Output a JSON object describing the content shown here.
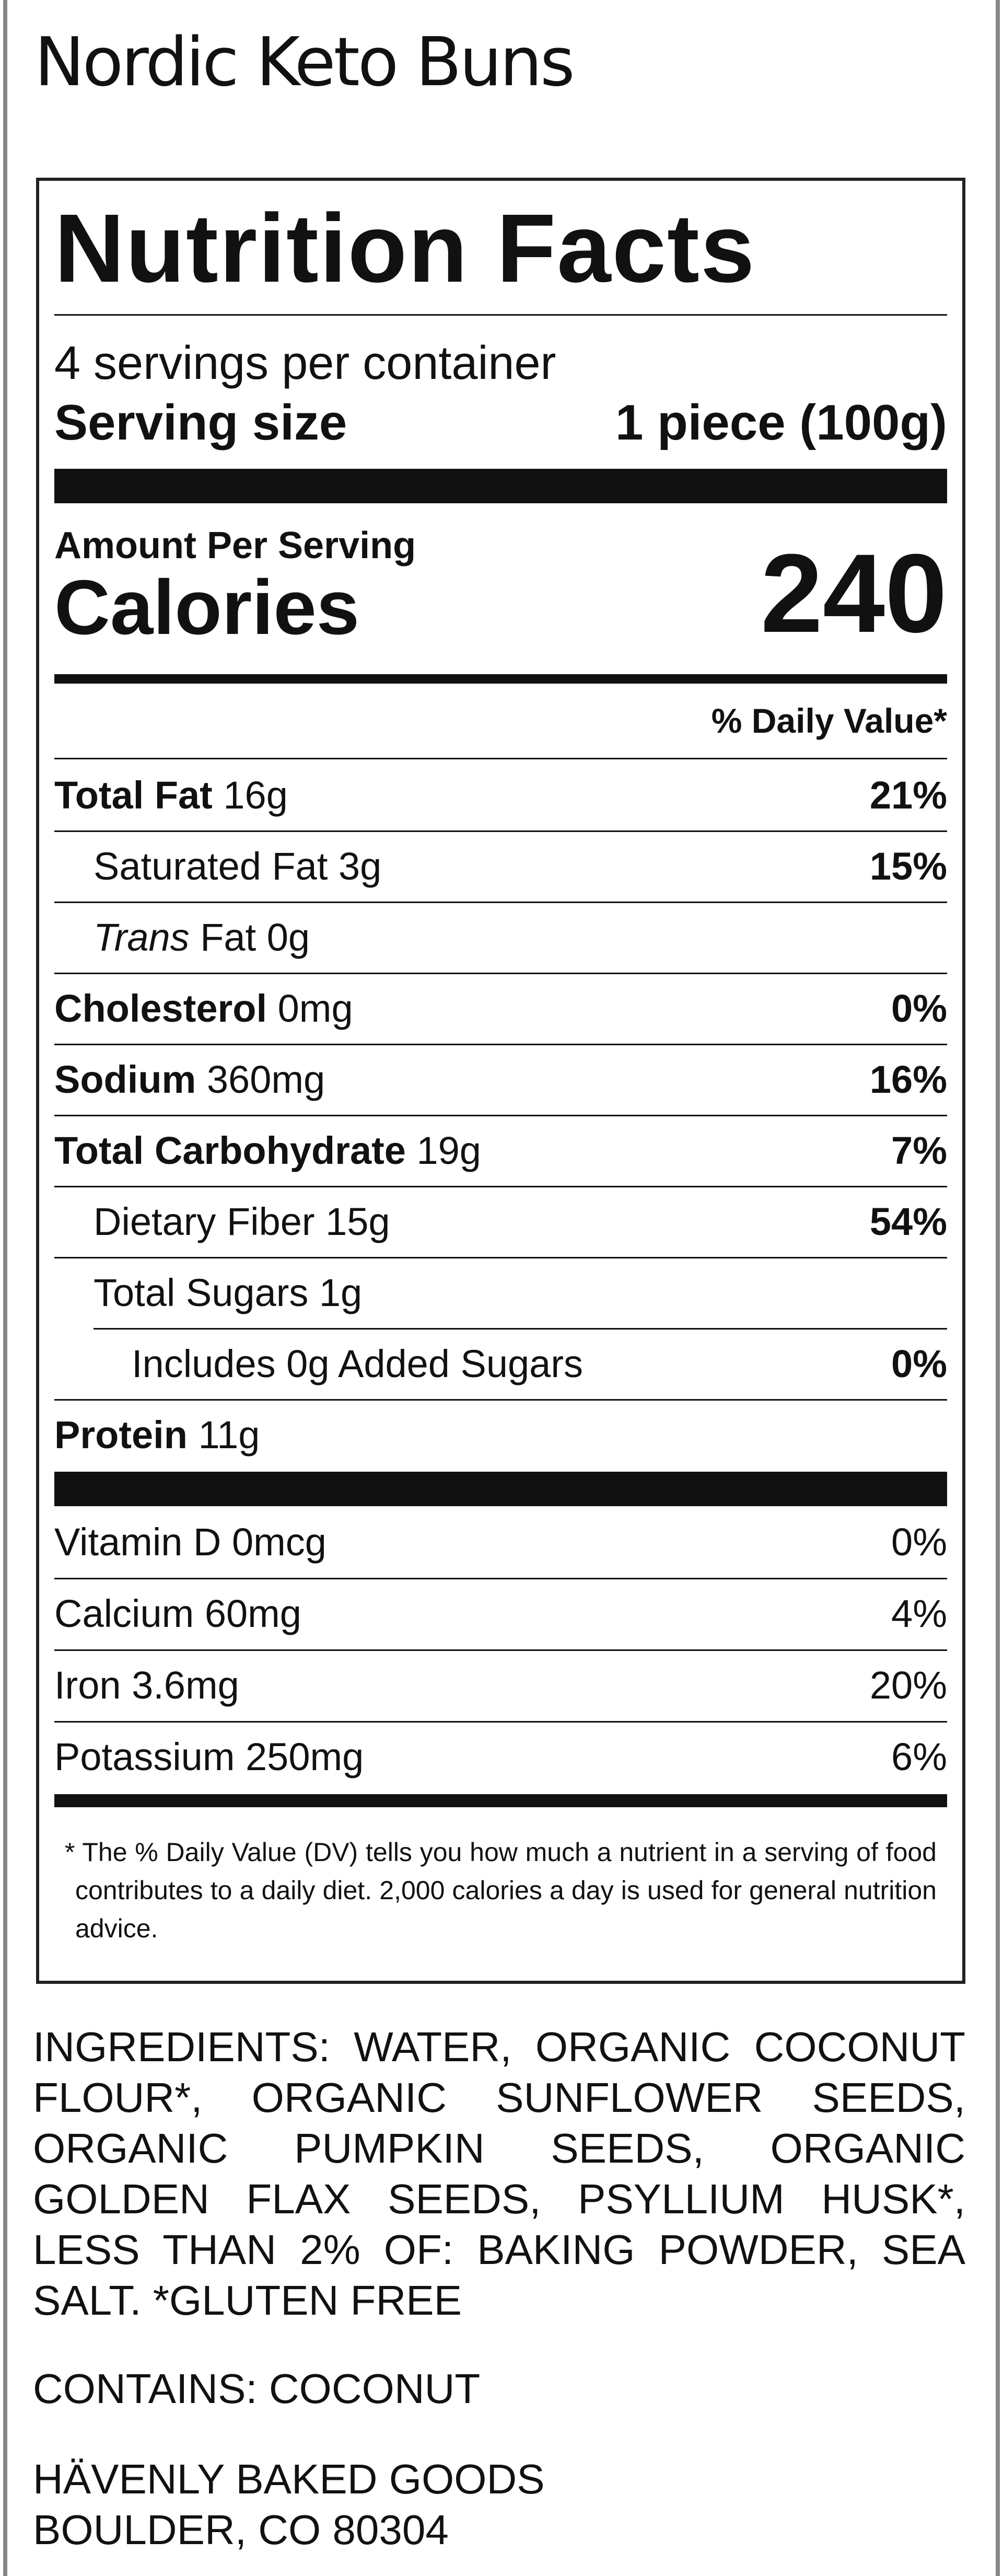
{
  "title": "Nordic Keto Buns",
  "label": {
    "heading": "Nutrition Facts",
    "servings": "4 servings per container",
    "serving_size_label": "Serving size",
    "serving_size": "1 piece (100g)",
    "amount_per_serving": "Amount Per Serving",
    "calories_label": "Calories",
    "calories": 240,
    "dv_header": "% Daily Value*",
    "nutrients": [
      {
        "name": "Total Fat",
        "amount": "16g",
        "dv": "21%",
        "bold": true,
        "indent": 0
      },
      {
        "name": "Saturated Fat",
        "amount": "3g",
        "dv": "15%",
        "bold": false,
        "indent": 1
      },
      {
        "name_italic": "Trans",
        "name": "Fat",
        "amount": "0g",
        "bold": false,
        "indent": 1
      },
      {
        "name": "Cholesterol",
        "amount": "0mg",
        "dv": "0%",
        "bold": true,
        "indent": 0
      },
      {
        "name": "Sodium",
        "amount": "360mg",
        "dv": "16%",
        "bold": true,
        "indent": 0
      },
      {
        "name": "Total Carbohydrate",
        "amount": "19g",
        "dv": "7%",
        "bold": true,
        "indent": 0
      },
      {
        "name": "Dietary Fiber",
        "amount": "15g",
        "dv": "54%",
        "bold": false,
        "indent": 1
      },
      {
        "name": "Total Sugars",
        "amount": "1g",
        "bold": false,
        "indent": 1
      },
      {
        "name": "Includes 0g Added Sugars",
        "dv": "0%",
        "bold": false,
        "indent": 2
      },
      {
        "name": "Protein",
        "amount": "11g",
        "bold": true,
        "indent": 0
      }
    ],
    "vitamins": [
      {
        "name": "Vitamin D",
        "amount": "0mcg",
        "dv": "0%"
      },
      {
        "name": "Calcium",
        "amount": "60mg",
        "dv": "4%"
      },
      {
        "name": "Iron",
        "amount": "3.6mg",
        "dv": "20%"
      },
      {
        "name": "Potassium",
        "amount": "250mg",
        "dv": "6%"
      }
    ],
    "footnote": "* The % Daily Value (DV) tells you how much a nutrient in a serving of food contributes to a daily diet. 2,000 calories a day is used for general nutrition advice."
  },
  "ingredients": "INGREDIENTS: WATER, ORGANIC COCONUT FLOUR*, ORGANIC SUNFLOWER SEEDS, ORGANIC PUMPKIN SEEDS, ORGANIC GOLDEN FLAX SEEDS, PSYLLIUM HUSK*, LESS THAN 2% OF: BAKING POWDER, SEA SALT. *GLUTEN FREE",
  "contains": "CONTAINS: COCONUT",
  "address": [
    "HÄVENLY BAKED GOODS",
    "BOULDER, CO 80304"
  ]
}
